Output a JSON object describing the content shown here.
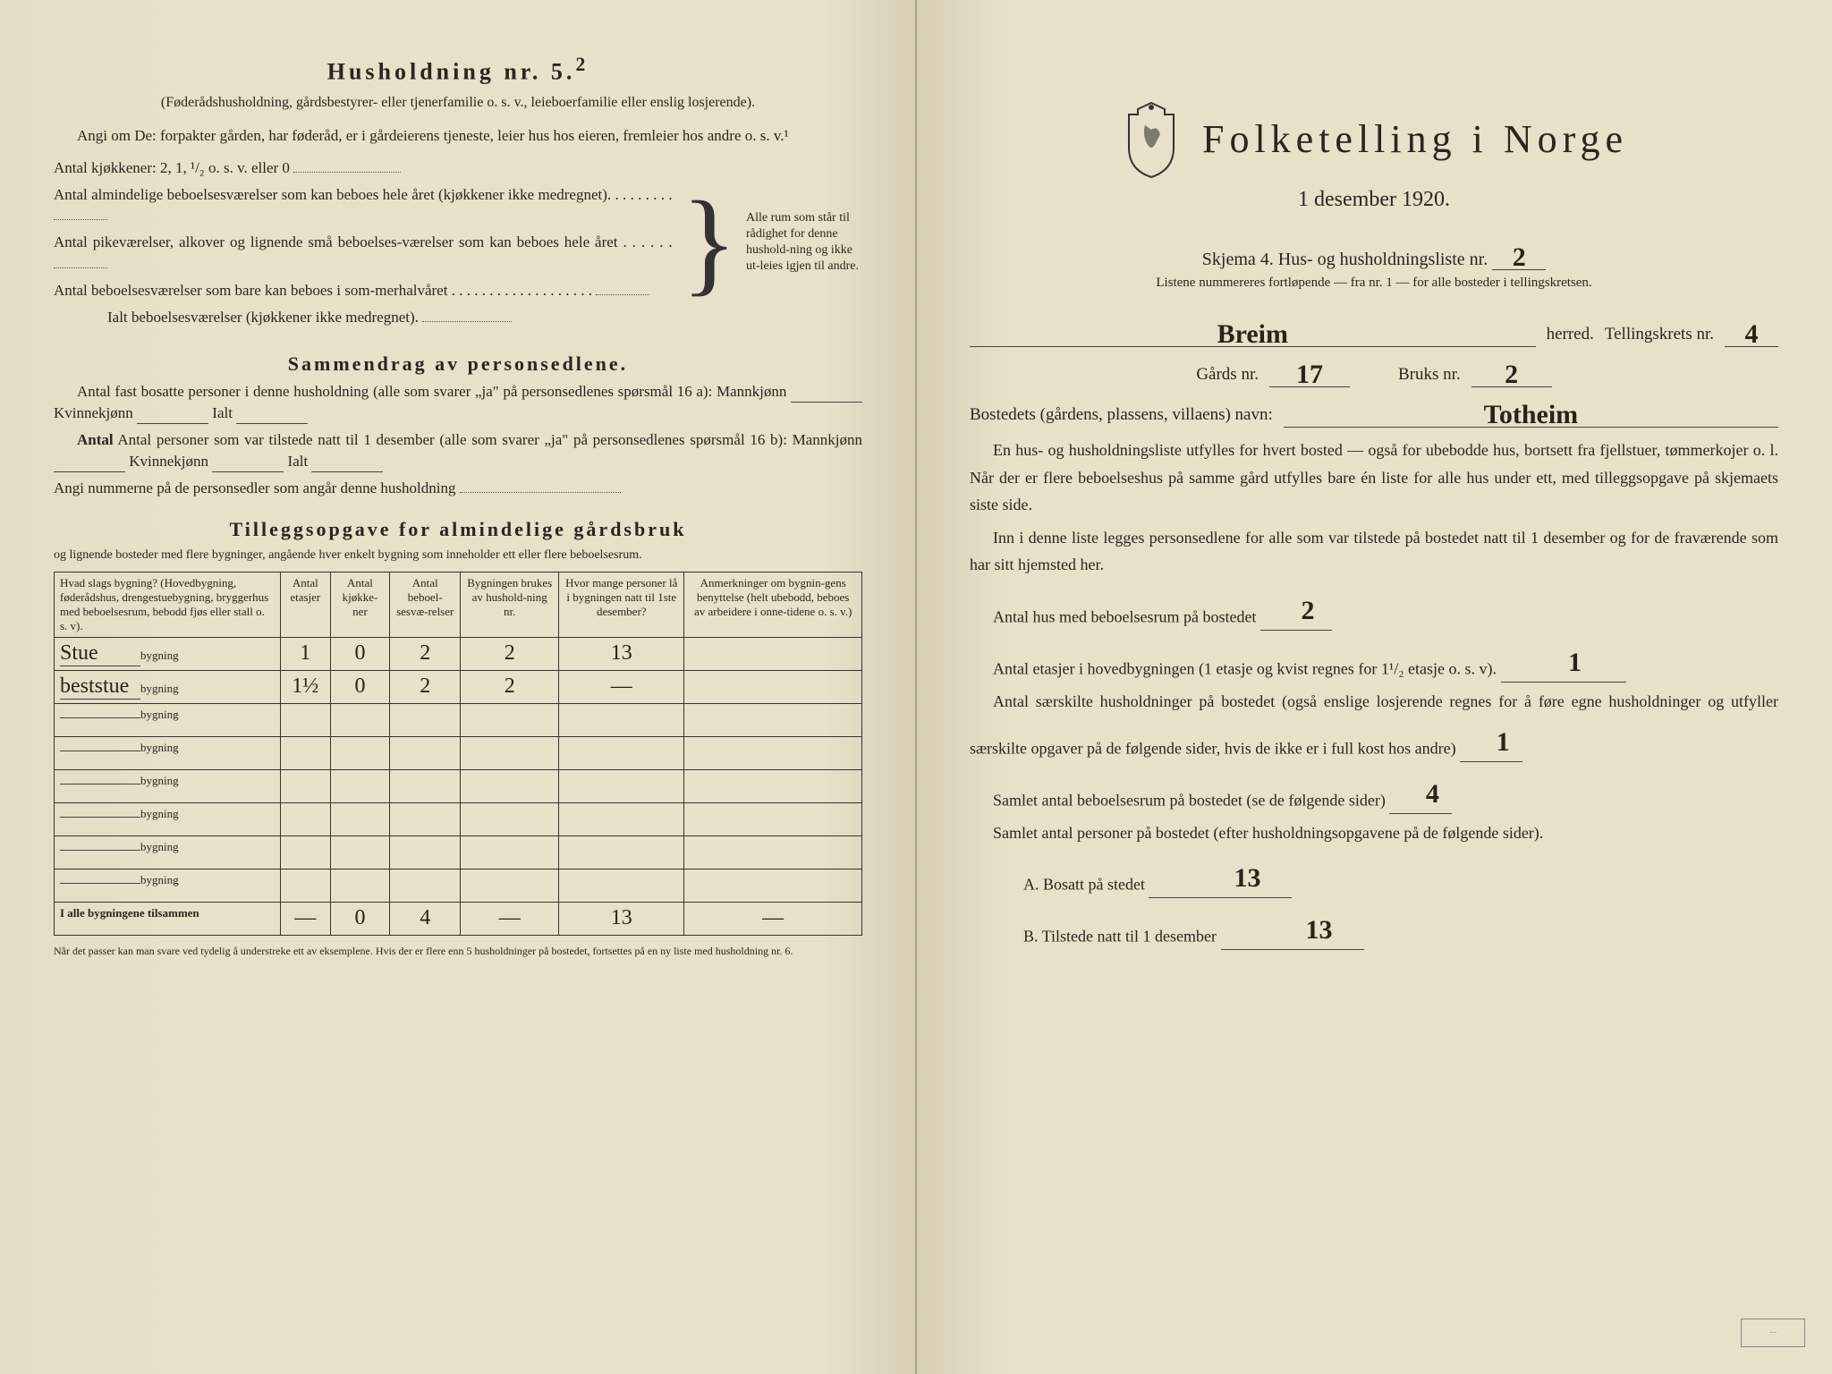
{
  "left": {
    "household_header": "Husholdning nr. 5.",
    "household_sup": "2",
    "household_sub": "(Føderådshusholdning, gårdsbestyrer- eller tjenerfamilie o. s. v., leieboerfamilie eller enslig losjerende).",
    "angi_line": "Angi om De: forpakter gården, har føderåd, er i gårdeierens tjeneste, leier hus hos eieren, fremleier hos andre o. s. v.¹",
    "kitchens_label": "Antal kjøkkener: 2, 1, ¹/₂ o. s. v. eller 0",
    "rooms_1": "Antal almindelige beboelsesværelser som kan beboes hele året (kjøkkener ikke medregnet).",
    "rooms_2": "Antal pikeværelser, alkover og lignende små beboelses-værelser som kan beboes hele året",
    "rooms_3": "Antal beboelsesværelser som bare kan beboes i som-merhalvåret",
    "rooms_total": "Ialt beboelsesværelser (kjøkkener ikke medregnet).",
    "brace_text": "Alle rum som står til rådighet for denne hushold-ning og ikke ut-leies igjen til andre.",
    "summary_header": "Sammendrag av personsedlene.",
    "summary_1a": "Antal fast bosatte personer i denne husholdning (alle som svarer „ja\" på personsedlenes spørsmål 16 a): Mannkjønn",
    "summary_kvinne": "Kvinnekjønn",
    "summary_ialt": "Ialt",
    "summary_1b": "Antal personer som var tilstede natt til 1 desember (alle som svarer „ja\" på personsedlenes spørsmål 16 b): Mannkjønn",
    "summary_angi": "Angi nummerne på de personsedler som angår denne husholdning",
    "tillegg_header": "Tilleggsopgave for almindelige gårdsbruk",
    "tillegg_sub": "og lignende bosteder med flere bygninger, angående hver enkelt bygning som inneholder ett eller flere beboelsesrum.",
    "table": {
      "headers": [
        "Hvad slags bygning?\n(Hovedbygning, føderådshus, drengestuebygning, bryggerhus med beboelsesrum, bebodd fjøs eller stall o. s. v).",
        "Antal etasjer",
        "Antal kjøkke-ner",
        "Antal beboel-sesvæ-relser",
        "Bygningen brukes av hushold-ning nr.",
        "Hvor mange personer lå i bygningen natt til 1ste desember?",
        "Anmerkninger om bygnin-gens benyttelse (helt ubebodd, beboes av arbeidere i onne-tidene o. s. v.)"
      ],
      "bygning_suffix": "bygning",
      "rows": [
        {
          "prefix": "Stue",
          "vals": [
            "1",
            "0",
            "2",
            "2",
            "13",
            ""
          ]
        },
        {
          "prefix": "beststue",
          "vals": [
            "1½",
            "0",
            "2",
            "2",
            "—",
            ""
          ]
        },
        {
          "prefix": "",
          "vals": [
            "",
            "",
            "",
            "",
            "",
            ""
          ]
        },
        {
          "prefix": "",
          "vals": [
            "",
            "",
            "",
            "",
            "",
            ""
          ]
        },
        {
          "prefix": "",
          "vals": [
            "",
            "",
            "",
            "",
            "",
            ""
          ]
        },
        {
          "prefix": "",
          "vals": [
            "",
            "",
            "",
            "",
            "",
            ""
          ]
        },
        {
          "prefix": "",
          "vals": [
            "",
            "",
            "",
            "",
            "",
            ""
          ]
        },
        {
          "prefix": "",
          "vals": [
            "",
            "",
            "",
            "",
            "",
            ""
          ]
        }
      ],
      "total_label": "I alle bygningene tilsammen",
      "totals": [
        "—",
        "0",
        "4",
        "—",
        "13",
        "—"
      ]
    },
    "footnote": "Når det passer kan man svare ved tydelig å understreke ett av eksemplene.\nHvis der er flere enn 5 husholdninger på bostedet, fortsettes på en ny liste med husholdning nr. 6."
  },
  "right": {
    "main_title": "Folketelling i Norge",
    "date": "1 desember 1920.",
    "skjema": "Skjema 4.  Hus- og husholdningsliste nr.",
    "skjema_nr": "2",
    "instr": "Listene nummereres fortløpende — fra nr. 1 — for alle bosteder i tellingskretsen.",
    "herred_value": "Breim",
    "herred_label": "herred.",
    "krets_label": "Tellingskrets nr.",
    "krets_value": "4",
    "gards_label": "Gårds nr.",
    "gards_value": "17",
    "bruks_label": "Bruks nr.",
    "bruks_value": "2",
    "bosted_label": "Bostedets (gårdens, plassens, villaens) navn:",
    "bosted_value": "Totheim",
    "para1": "En hus- og husholdningsliste utfylles for hvert bosted — også for ubebodde hus, bortsett fra fjellstuer, tømmerkojer o. l.  Når der er flere beboelseshus på samme gård utfylles bare én liste for alle hus under ett, med tilleggsopgave på skjemaets siste side.",
    "para2": "Inn i denne liste legges personsedlene for alle som var tilstede på bostedet natt til 1 desember og for de fraværende som har sitt hjemsted her.",
    "q1_label": "Antal hus med beboelsesrum på bostedet",
    "q1_value": "2",
    "q2_label_a": "Antal etasjer i hovedbygningen (1 etasje og kvist regnes for 1¹/₂ etasje o. s. v).",
    "q2_value": "1",
    "q3_label": "Antal særskilte husholdninger på bostedet (også enslige losjerende regnes for å føre egne husholdninger og utfyller særskilte opgaver på de følgende sider, hvis de ikke er i full kost hos andre)",
    "q3_value": "1",
    "q4_label": "Samlet antal beboelsesrum på bostedet (se de følgende sider)",
    "q4_value": "4",
    "q5_label": "Samlet antal personer på bostedet (efter husholdningsopgavene på de følgende sider).",
    "qA_label": "A.  Bosatt på stedet",
    "qA_value": "13",
    "qB_label": "B.  Tilstede natt til 1 desember",
    "qB_value": "13"
  }
}
